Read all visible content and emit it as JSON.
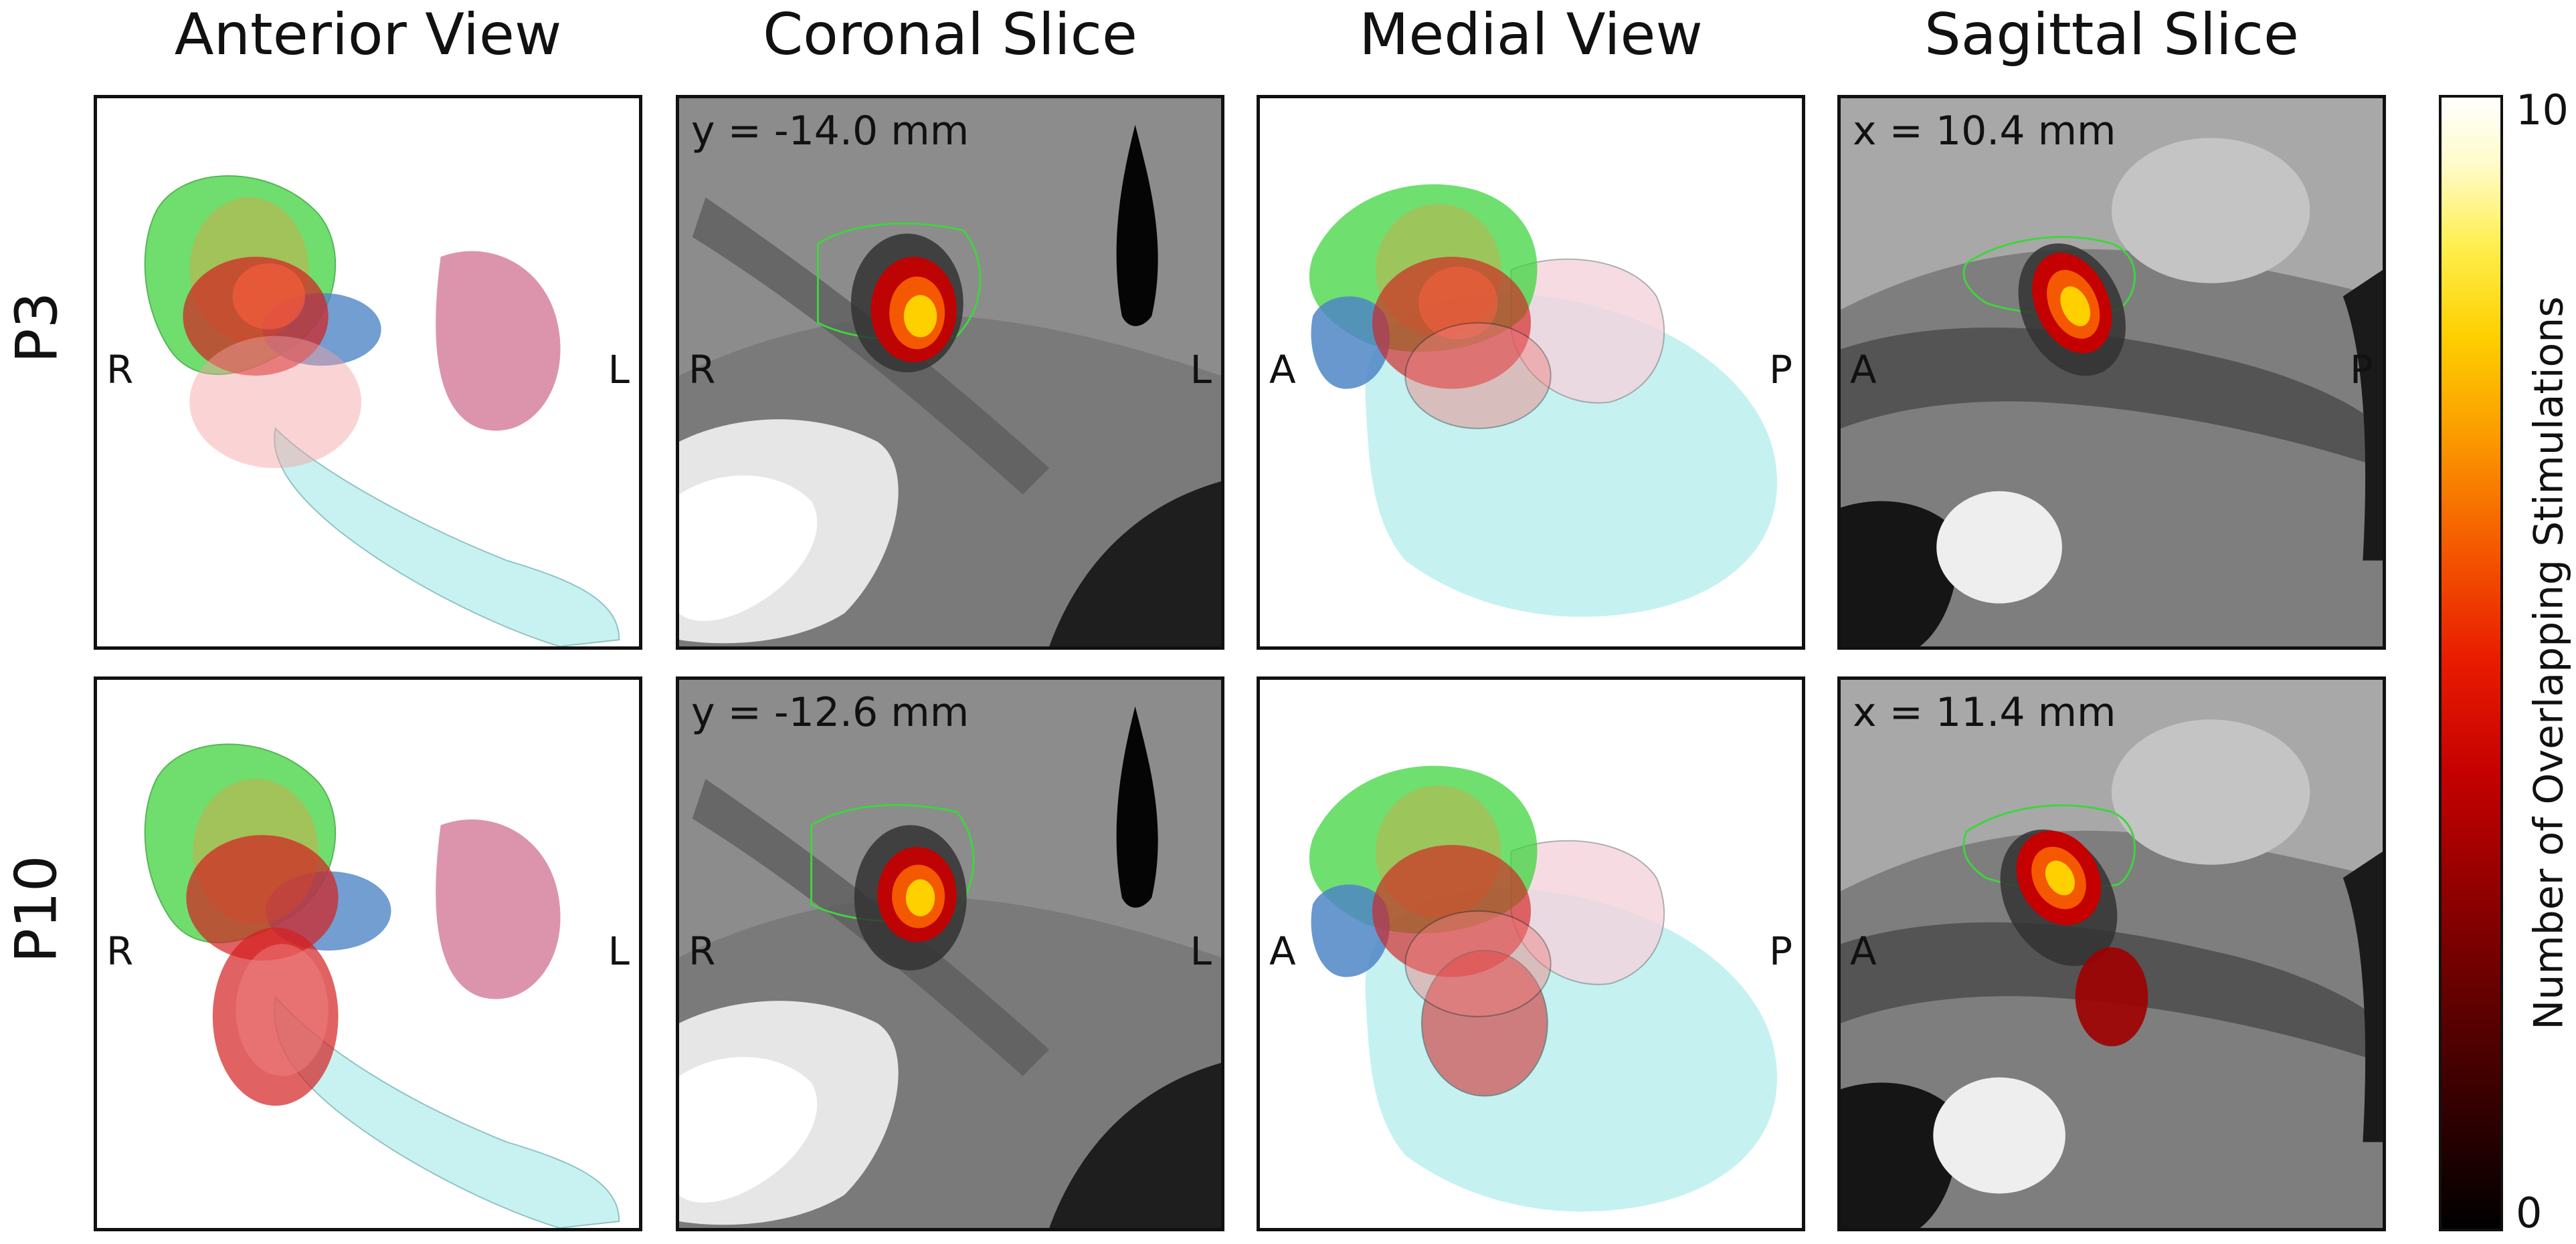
{
  "columns": [
    "Anterior View",
    "Coronal Slice",
    "Medial View",
    "Sagittal Slice"
  ],
  "rows": [
    {
      "label": "P3",
      "anterior": {
        "left": "R",
        "right": "L"
      },
      "coronal": {
        "coord": "y = -14.0 mm",
        "left": "R",
        "right": "L"
      },
      "medial": {
        "left": "A",
        "right": "P"
      },
      "sagittal": {
        "coord": "x = 10.4 mm",
        "left": "A",
        "right": "P"
      }
    },
    {
      "label": "P10",
      "anterior": {
        "left": "R",
        "right": "L"
      },
      "coronal": {
        "coord": "y = -12.6 mm",
        "left": "R",
        "right": "L"
      },
      "medial": {
        "left": "A",
        "right": "P"
      },
      "sagittal": {
        "coord": "x = 11.4 mm",
        "left": "A"
      }
    }
  ],
  "colorbar": {
    "label": "Number of Overlapping Stimulations",
    "max_label": "10",
    "min_label": "0",
    "range": [
      0,
      10
    ],
    "colors": [
      "#000000",
      "#7e0000",
      "#e81a00",
      "#fb9a00",
      "#fed000",
      "#ffffff"
    ]
  },
  "structure_colors": {
    "green": "#3fd43f",
    "pink": "#d07090",
    "cyan": "#bff0f0",
    "blue": "#4f86c6",
    "red": "#d42020"
  }
}
